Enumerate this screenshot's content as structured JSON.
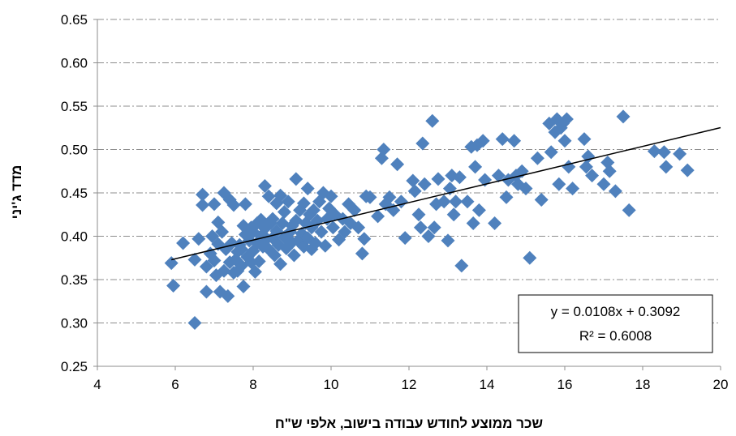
{
  "chart_data": {
    "type": "scatter",
    "xlabel": "שכר ממוצע לחודש עבודה בישוב, אלפי ש\"ח",
    "ylabel": "מדד ג'יני",
    "xlim": [
      4,
      20
    ],
    "ylim": [
      0.25,
      0.65
    ],
    "x_ticks": [
      4,
      6,
      8,
      10,
      12,
      14,
      16,
      18,
      20
    ],
    "y_ticks": [
      0.25,
      0.3,
      0.35,
      0.4,
      0.45,
      0.5,
      0.55,
      0.6,
      0.65
    ],
    "grid": "horizontal dash-dot",
    "marker_color": "#4F81BD",
    "trendline": {
      "slope": 0.0108,
      "intercept": 0.3092,
      "x_range": [
        5.9,
        20
      ],
      "equation_label": "y = 0.0108x + 0.3092",
      "r2_label": "R² = 0.6008"
    },
    "points": [
      [
        5.9,
        0.369
      ],
      [
        5.95,
        0.343
      ],
      [
        6.2,
        0.392
      ],
      [
        6.5,
        0.3
      ],
      [
        6.5,
        0.373
      ],
      [
        6.6,
        0.397
      ],
      [
        6.7,
        0.448
      ],
      [
        6.7,
        0.436
      ],
      [
        6.8,
        0.336
      ],
      [
        6.8,
        0.365
      ],
      [
        6.9,
        0.38
      ],
      [
        6.95,
        0.4
      ],
      [
        7.0,
        0.437
      ],
      [
        7.0,
        0.372
      ],
      [
        7.05,
        0.355
      ],
      [
        7.1,
        0.416
      ],
      [
        7.1,
        0.391
      ],
      [
        7.15,
        0.336
      ],
      [
        7.2,
        0.405
      ],
      [
        7.25,
        0.36
      ],
      [
        7.25,
        0.45
      ],
      [
        7.3,
        0.385
      ],
      [
        7.35,
        0.331
      ],
      [
        7.4,
        0.442
      ],
      [
        7.4,
        0.37
      ],
      [
        7.45,
        0.392
      ],
      [
        7.5,
        0.436
      ],
      [
        7.5,
        0.358
      ],
      [
        7.55,
        0.373
      ],
      [
        7.6,
        0.382
      ],
      [
        7.6,
        0.36
      ],
      [
        7.65,
        0.39
      ],
      [
        7.7,
        0.366
      ],
      [
        7.7,
        0.385
      ],
      [
        7.75,
        0.412
      ],
      [
        7.75,
        0.342
      ],
      [
        7.8,
        0.402
      ],
      [
        7.8,
        0.437
      ],
      [
        7.85,
        0.376
      ],
      [
        7.9,
        0.395
      ],
      [
        7.95,
        0.41
      ],
      [
        7.95,
        0.37
      ],
      [
        8.0,
        0.383
      ],
      [
        8.0,
        0.405
      ],
      [
        8.05,
        0.359
      ],
      [
        8.1,
        0.415
      ],
      [
        8.1,
        0.392
      ],
      [
        8.15,
        0.371
      ],
      [
        8.2,
        0.4
      ],
      [
        8.2,
        0.419
      ],
      [
        8.25,
        0.388
      ],
      [
        8.3,
        0.409
      ],
      [
        8.3,
        0.458
      ],
      [
        8.35,
        0.397
      ],
      [
        8.4,
        0.385
      ],
      [
        8.4,
        0.446
      ],
      [
        8.45,
        0.415
      ],
      [
        8.5,
        0.398
      ],
      [
        8.5,
        0.42
      ],
      [
        8.55,
        0.378
      ],
      [
        8.6,
        0.406
      ],
      [
        8.6,
        0.438
      ],
      [
        8.65,
        0.39
      ],
      [
        8.7,
        0.368
      ],
      [
        8.7,
        0.447
      ],
      [
        8.75,
        0.415
      ],
      [
        8.8,
        0.399
      ],
      [
        8.8,
        0.428
      ],
      [
        8.85,
        0.386
      ],
      [
        8.9,
        0.44
      ],
      [
        8.95,
        0.405
      ],
      [
        9.0,
        0.393
      ],
      [
        9.0,
        0.412
      ],
      [
        9.05,
        0.378
      ],
      [
        9.1,
        0.466
      ],
      [
        9.1,
        0.418
      ],
      [
        9.15,
        0.395
      ],
      [
        9.2,
        0.43
      ],
      [
        9.25,
        0.403
      ],
      [
        9.3,
        0.388
      ],
      [
        9.3,
        0.438
      ],
      [
        9.35,
        0.415
      ],
      [
        9.4,
        0.455
      ],
      [
        9.4,
        0.398
      ],
      [
        9.45,
        0.425
      ],
      [
        9.5,
        0.385
      ],
      [
        9.5,
        0.41
      ],
      [
        9.55,
        0.43
      ],
      [
        9.6,
        0.392
      ],
      [
        9.65,
        0.418
      ],
      [
        9.7,
        0.44
      ],
      [
        9.75,
        0.405
      ],
      [
        9.8,
        0.45
      ],
      [
        9.85,
        0.389
      ],
      [
        9.9,
        0.42
      ],
      [
        9.95,
        0.432
      ],
      [
        10.0,
        0.446
      ],
      [
        10.05,
        0.41
      ],
      [
        10.1,
        0.425
      ],
      [
        10.2,
        0.396
      ],
      [
        10.3,
        0.42
      ],
      [
        10.35,
        0.405
      ],
      [
        10.45,
        0.437
      ],
      [
        10.5,
        0.415
      ],
      [
        10.6,
        0.43
      ],
      [
        10.7,
        0.41
      ],
      [
        10.8,
        0.38
      ],
      [
        10.85,
        0.397
      ],
      [
        10.9,
        0.446
      ],
      [
        11.0,
        0.445
      ],
      [
        11.2,
        0.423
      ],
      [
        11.3,
        0.49
      ],
      [
        11.35,
        0.5
      ],
      [
        11.4,
        0.437
      ],
      [
        11.5,
        0.445
      ],
      [
        11.6,
        0.43
      ],
      [
        11.7,
        0.483
      ],
      [
        11.8,
        0.44
      ],
      [
        11.9,
        0.398
      ],
      [
        12.1,
        0.464
      ],
      [
        12.15,
        0.452
      ],
      [
        12.25,
        0.425
      ],
      [
        12.3,
        0.41
      ],
      [
        12.35,
        0.507
      ],
      [
        12.4,
        0.46
      ],
      [
        12.5,
        0.4
      ],
      [
        12.6,
        0.533
      ],
      [
        12.65,
        0.41
      ],
      [
        12.7,
        0.437
      ],
      [
        12.75,
        0.466
      ],
      [
        12.9,
        0.44
      ],
      [
        13.0,
        0.395
      ],
      [
        13.05,
        0.455
      ],
      [
        13.1,
        0.47
      ],
      [
        13.15,
        0.425
      ],
      [
        13.2,
        0.44
      ],
      [
        13.3,
        0.468
      ],
      [
        13.35,
        0.366
      ],
      [
        13.5,
        0.44
      ],
      [
        13.6,
        0.503
      ],
      [
        13.65,
        0.415
      ],
      [
        13.7,
        0.48
      ],
      [
        13.75,
        0.505
      ],
      [
        13.8,
        0.43
      ],
      [
        13.9,
        0.51
      ],
      [
        13.95,
        0.465
      ],
      [
        14.2,
        0.415
      ],
      [
        14.3,
        0.47
      ],
      [
        14.4,
        0.512
      ],
      [
        14.5,
        0.445
      ],
      [
        14.55,
        0.465
      ],
      [
        14.7,
        0.51
      ],
      [
        14.75,
        0.47
      ],
      [
        14.8,
        0.46
      ],
      [
        14.9,
        0.475
      ],
      [
        15.0,
        0.455
      ],
      [
        15.1,
        0.375
      ],
      [
        15.3,
        0.49
      ],
      [
        15.4,
        0.442
      ],
      [
        15.6,
        0.53
      ],
      [
        15.65,
        0.497
      ],
      [
        15.75,
        0.52
      ],
      [
        15.8,
        0.535
      ],
      [
        15.85,
        0.46
      ],
      [
        15.9,
        0.525
      ],
      [
        15.95,
        0.53
      ],
      [
        16.0,
        0.51
      ],
      [
        16.05,
        0.535
      ],
      [
        16.1,
        0.48
      ],
      [
        16.2,
        0.455
      ],
      [
        16.5,
        0.512
      ],
      [
        16.55,
        0.48
      ],
      [
        16.6,
        0.492
      ],
      [
        16.7,
        0.47
      ],
      [
        17.0,
        0.46
      ],
      [
        17.1,
        0.485
      ],
      [
        17.15,
        0.475
      ],
      [
        17.3,
        0.452
      ],
      [
        17.5,
        0.538
      ],
      [
        17.65,
        0.43
      ],
      [
        18.3,
        0.498
      ],
      [
        18.55,
        0.497
      ],
      [
        18.6,
        0.48
      ],
      [
        18.95,
        0.495
      ],
      [
        19.15,
        0.476
      ]
    ]
  }
}
